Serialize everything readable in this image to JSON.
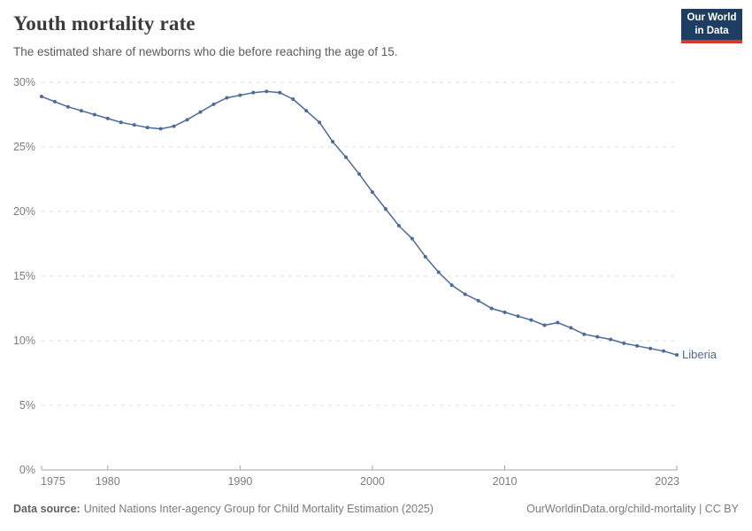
{
  "header": {
    "title": "Youth mortality rate",
    "subtitle": "The estimated share of newborns who die before reaching the age of 15.",
    "logo": {
      "line1": "Our World",
      "line2": "in Data",
      "bg_color": "#1d3d63",
      "accent_color": "#dc352a"
    }
  },
  "chart_data": {
    "type": "line",
    "title": "Youth mortality rate",
    "xlabel": "",
    "ylabel": "",
    "xlim": [
      1975,
      2023
    ],
    "ylim": [
      0,
      30
    ],
    "grid": "horizontal-dashed",
    "legend_position": "end-of-line-label",
    "x_ticks": [
      1975,
      1980,
      1990,
      2000,
      2010,
      2023
    ],
    "y_ticks": [
      0,
      5,
      10,
      15,
      20,
      25,
      30
    ],
    "y_tick_labels": [
      "0%",
      "5%",
      "10%",
      "15%",
      "20%",
      "25%",
      "30%"
    ],
    "series": [
      {
        "name": "Liberia",
        "color": "#4c6a9c",
        "x": [
          1975,
          1976,
          1977,
          1978,
          1979,
          1980,
          1981,
          1982,
          1983,
          1984,
          1985,
          1986,
          1987,
          1988,
          1989,
          1990,
          1991,
          1992,
          1993,
          1994,
          1995,
          1996,
          1997,
          1998,
          1999,
          2000,
          2001,
          2002,
          2003,
          2004,
          2005,
          2006,
          2007,
          2008,
          2009,
          2010,
          2011,
          2012,
          2013,
          2014,
          2015,
          2016,
          2017,
          2018,
          2019,
          2020,
          2021,
          2022,
          2023
        ],
        "values": [
          28.9,
          28.5,
          28.1,
          27.8,
          27.5,
          27.2,
          26.9,
          26.7,
          26.5,
          26.4,
          26.6,
          27.1,
          27.7,
          28.3,
          28.8,
          29.0,
          29.2,
          29.3,
          29.2,
          28.7,
          27.8,
          26.9,
          25.4,
          24.2,
          22.9,
          21.5,
          20.2,
          18.9,
          17.9,
          16.5,
          15.3,
          14.3,
          13.6,
          13.1,
          12.5,
          12.2,
          11.9,
          11.6,
          11.2,
          11.4,
          11.0,
          10.5,
          10.3,
          10.1,
          9.8,
          9.6,
          9.4,
          9.2,
          8.9
        ]
      }
    ],
    "colors": {
      "gridline": "#dcdcdc",
      "axis": "#a5a5a5",
      "tick_label": "#7c7c7c"
    }
  },
  "footer": {
    "source_label": "Data source:",
    "source_text": "United Nations Inter-agency Group for Child Mortality Estimation (2025)",
    "link_text": "OurWorldinData.org/child-mortality | CC BY"
  }
}
